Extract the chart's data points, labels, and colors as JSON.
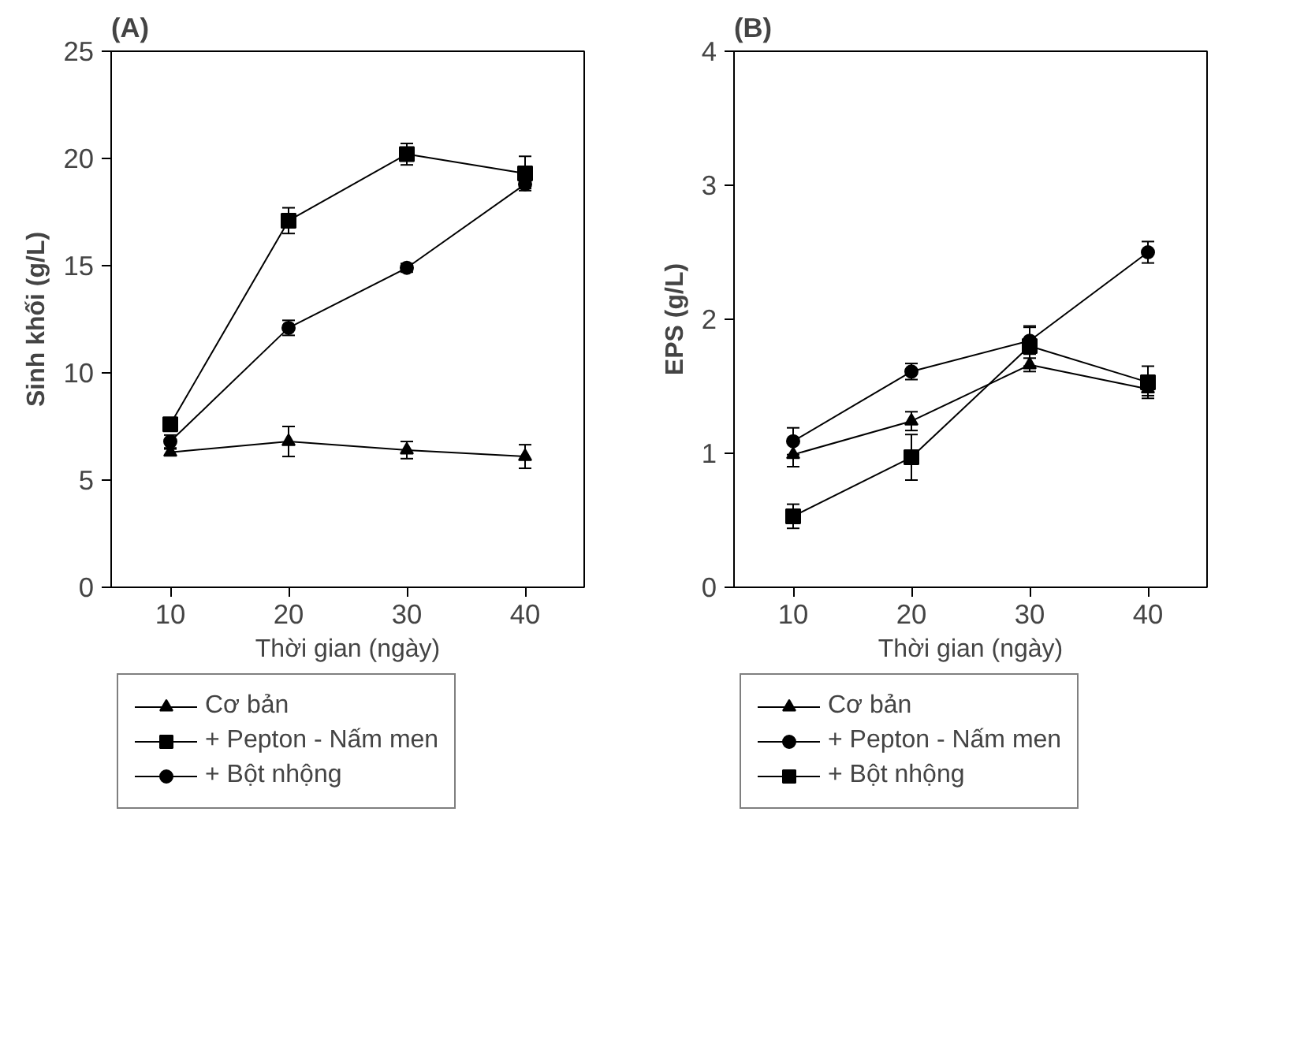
{
  "chart_data": [
    {
      "type": "line",
      "title": "(A)",
      "xlabel": "Thời gian (ngày)",
      "ylabel": "Sinh khối (g/L)",
      "x": [
        10,
        20,
        30,
        40
      ],
      "xlim": [
        5,
        45
      ],
      "xticks": [
        10,
        20,
        30,
        40
      ],
      "ylim": [
        0,
        25
      ],
      "yticks": [
        0,
        5,
        10,
        15,
        20,
        25
      ],
      "grid": false,
      "legend": "bottom",
      "series": [
        {
          "name": "Cơ bản",
          "color": "#000000",
          "marker": "triangle",
          "values": [
            6.3,
            6.8,
            6.4,
            6.1
          ],
          "errors": [
            0.15,
            0.7,
            0.4,
            0.55
          ]
        },
        {
          "name": "+ Pepton - Nấm men",
          "color": "#000000",
          "marker": "square",
          "values": [
            7.6,
            17.1,
            20.2,
            19.3
          ],
          "errors": [
            0.25,
            0.6,
            0.5,
            0.8
          ]
        },
        {
          "name": "+ Bột nhộng",
          "color": "#000000",
          "marker": "circle",
          "values": [
            6.8,
            12.1,
            14.9,
            18.8
          ],
          "errors": [
            0.3,
            0.35,
            0.2,
            0.2
          ]
        }
      ]
    },
    {
      "type": "line",
      "title": "(B)",
      "xlabel": "Thời gian (ngày)",
      "ylabel": "EPS (g/L)",
      "x": [
        10,
        20,
        30,
        40
      ],
      "xlim": [
        5,
        45
      ],
      "xticks": [
        10,
        20,
        30,
        40
      ],
      "ylim": [
        0,
        4
      ],
      "yticks": [
        0,
        1,
        2,
        3,
        4
      ],
      "grid": false,
      "legend": "bottom",
      "series": [
        {
          "name": "Cơ bản",
          "color": "#000000",
          "marker": "triangle",
          "values": [
            0.99,
            1.24,
            1.66,
            1.48
          ],
          "errors": [
            0.09,
            0.07,
            0.05,
            0.05
          ]
        },
        {
          "name": "+ Pepton - Nấm men",
          "color": "#000000",
          "marker": "circle",
          "values": [
            1.09,
            1.61,
            1.84,
            2.5
          ],
          "errors": [
            0.1,
            0.06,
            0.1,
            0.08
          ]
        },
        {
          "name": "+ Bột nhộng",
          "color": "#000000",
          "marker": "square",
          "values": [
            0.53,
            0.97,
            1.8,
            1.53
          ],
          "errors": [
            0.09,
            0.17,
            0.15,
            0.12
          ]
        }
      ]
    }
  ]
}
